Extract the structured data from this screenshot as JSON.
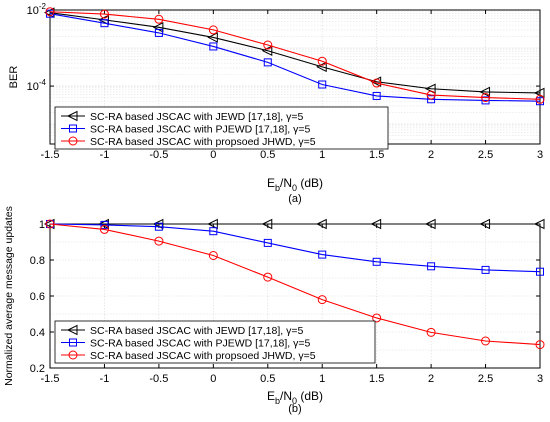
{
  "chart_data": [
    {
      "type": "line",
      "panel_label": "(a)",
      "ylabel": "BER",
      "xlabel": {
        "main": "E",
        "sub1": "b",
        "mid": "/N",
        "sub2": "0",
        "tail": " (dB)"
      },
      "x": [
        -1.5,
        -1,
        -0.5,
        0,
        0.5,
        1,
        1.5,
        2,
        2.5,
        3
      ],
      "xticks": [
        "-1.5",
        "-1",
        "-0.5",
        "0",
        "0.5",
        "1",
        "1.5",
        "2",
        "2.5",
        "3"
      ],
      "xlim": [
        -1.5,
        3
      ],
      "yscale": "log",
      "ylim": [
        3e-06,
        0.01
      ],
      "yticks": [
        {
          "value": 0.01,
          "base": "10",
          "exp": "-2"
        },
        {
          "value": 0.0001,
          "base": "10",
          "exp": "-4"
        }
      ],
      "grid": true,
      "legend_position": "bottom-left",
      "series": [
        {
          "name": "SC-RA based JSCAC with JEWD [17,18], γ=5",
          "color": "#000000",
          "marker": "triangle-left",
          "values": [
            0.0085,
            0.0055,
            0.0035,
            0.0019,
            0.00085,
            0.00032,
            0.00013,
            8.5e-05,
            7e-05,
            6.6e-05
          ]
        },
        {
          "name": "SC-RA based JSCAC with PJEWD [17,18], γ=5",
          "color": "#0000ff",
          "marker": "square",
          "values": [
            0.008,
            0.0045,
            0.0025,
            0.0011,
            0.00042,
            0.00011,
            5.5e-05,
            4.5e-05,
            4.2e-05,
            4e-05
          ]
        },
        {
          "name": "SC-RA based JSCAC with propsoed JHWD, γ=5",
          "color": "#ff0000",
          "marker": "circle",
          "values": [
            0.009,
            0.0078,
            0.0057,
            0.003,
            0.0012,
            0.00045,
            0.00012,
            5.8e-05,
            5e-05,
            4.5e-05
          ]
        }
      ]
    },
    {
      "type": "line",
      "panel_label": "(b)",
      "ylabel": "Normalized average message updates",
      "xlabel": {
        "main": "E",
        "sub1": "b",
        "mid": "/N",
        "sub2": "0",
        "tail": " (dB)"
      },
      "x": [
        -1.5,
        -1,
        -0.5,
        0,
        0.5,
        1,
        1.5,
        2,
        2.5,
        3
      ],
      "xticks": [
        "-1.5",
        "-1",
        "-0.5",
        "0",
        "0.5",
        "1",
        "1.5",
        "2",
        "2.5",
        "3"
      ],
      "xlim": [
        -1.5,
        3
      ],
      "ylim": [
        0.2,
        1
      ],
      "yticks": [
        "0.2",
        "0.4",
        "0.6",
        "0.8",
        "1"
      ],
      "grid": true,
      "legend_position": "bottom-left",
      "series": [
        {
          "name": "SC-RA based JSCAC with JEWD [17,18], γ=5",
          "color": "#000000",
          "marker": "triangle-left",
          "values": [
            1,
            1,
            1,
            1,
            1,
            1,
            1,
            1,
            1,
            1
          ]
        },
        {
          "name": "SC-RA based JSCAC with PJEWD [17,18], γ=5",
          "color": "#0000ff",
          "marker": "square",
          "values": [
            1,
            0.995,
            0.985,
            0.96,
            0.895,
            0.83,
            0.79,
            0.765,
            0.745,
            0.735
          ]
        },
        {
          "name": "SC-RA based JSCAC with propsoed JHWD, γ=5",
          "color": "#ff0000",
          "marker": "circle",
          "values": [
            1,
            0.97,
            0.905,
            0.825,
            0.705,
            0.58,
            0.478,
            0.398,
            0.35,
            0.33
          ]
        }
      ]
    }
  ]
}
